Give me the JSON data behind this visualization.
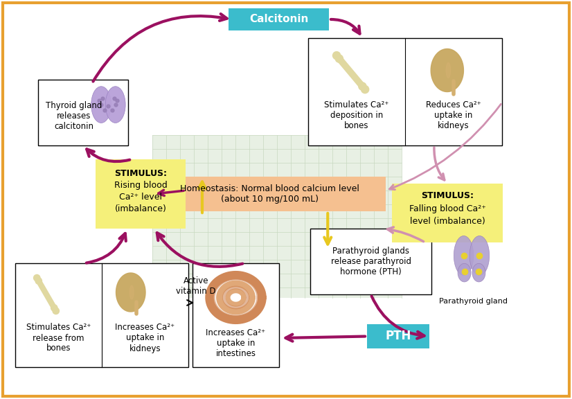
{
  "bg_color": "#FFFFFF",
  "border_color": "#E8A030",
  "homeostasis_text": "Homeostasis: Normal blood calcium level\n(about 10 mg/100 mL)",
  "homeostasis_color": "#F5C090",
  "calcitonin_text": "Calcitonin",
  "calcitonin_color": "#3BBCCC",
  "pth_text": "PTH",
  "pth_color": "#3BBCCC",
  "stimulus_rising_text": "STIMULUS:\nRising blood\nCa²⁺ level\n(imbalance)",
  "stimulus_falling_text": "STIMULUS:\nFalling blood Ca²⁺\nlevel (imbalance)",
  "stimulus_color": "#F5F07A",
  "thyroid_text": "Thyroid gland\nreleases\ncalcitonin",
  "ce_text1": "Stimulates Ca²⁺\ndeposition in\nbones",
  "ce_text2": "Reduces Ca²⁺\nuptake in\nkidneys",
  "pg_text": "Parathyroid glands\nrelease parathyroid\nhormone (PTH)",
  "parathyroid_label": "Parathyroid gland",
  "bl_text1": "Stimulates Ca²⁺\nrelease from\nbones",
  "bl_text2": "Increases Ca²⁺\nuptake in\nkidneys",
  "bm_text": "Increases Ca²⁺\nuptake in\nintestines",
  "active_vd": "Active\nvitamin D",
  "arrow_color": "#9B1060",
  "light_arrow": "#D090B0",
  "yellow_arrow": "#E8C820",
  "thyroid_color": "#B8A0D8",
  "kidney_color": "#C8A060",
  "bone_color": "#D4CC88",
  "intestine_color": "#D08050",
  "parathyroid_color": "#B8A0D8"
}
